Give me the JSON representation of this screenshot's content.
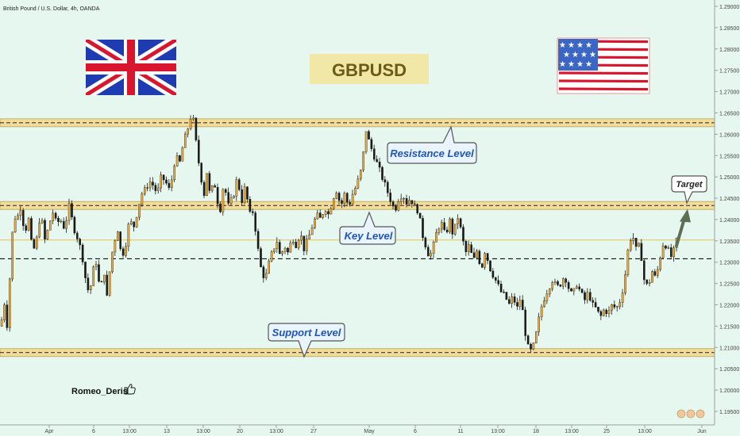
{
  "header": {
    "symbol_title": "British Pound / U.S. Dollar, 4h, OANDA"
  },
  "pair_label": "GBPUSD",
  "author": "Romeo_Deris",
  "author_icon": "thumbs-up-icon",
  "flags": {
    "left": "united-kingdom-flag-icon",
    "right": "united-states-flag-icon"
  },
  "colors": {
    "background": "#e5f7ee",
    "candle_up": "#f5ad35",
    "candle_down": "#1b1b1b",
    "zone_fill": "#f3dc9a",
    "label_bg": "#f1e7a6",
    "label_text": "#6b5a18",
    "callout_text": "#1e55b8",
    "arrow": "#5e6e55"
  },
  "chart_data": {
    "type": "candlestick",
    "title": "British Pound / U.S. Dollar, 4h, OANDA",
    "ylim": [
      1.195,
      1.29
    ],
    "y_ticks": [
      "1.29000",
      "1.28500",
      "1.28000",
      "1.27500",
      "1.27000",
      "1.26500",
      "1.26000",
      "1.25500",
      "1.25000",
      "1.24500",
      "1.24000",
      "1.23500",
      "1.23000",
      "1.22500",
      "1.22000",
      "1.21500",
      "1.21000",
      "1.20500",
      "1.20000",
      "1.19500"
    ],
    "x_ticks": [
      "Apr",
      "6",
      "13:00",
      "13",
      "13:00",
      "20",
      "13:00",
      "27",
      "May",
      "6",
      "11",
      "13:00",
      "18",
      "13:00",
      "25",
      "13:00",
      "Jun"
    ],
    "levels": [
      {
        "name": "resistance",
        "value": 1.2627
      },
      {
        "name": "key",
        "value": 1.2433
      },
      {
        "name": "support",
        "value": 1.2088
      }
    ],
    "reference_line": 1.2352,
    "dashed_line": 1.2308,
    "annotations": [
      "Resistance Level",
      "Key Level",
      "Support Level",
      "Target"
    ],
    "target_value": 1.2425,
    "path": [
      [
        0,
        1.215
      ],
      [
        4,
        1.221
      ],
      [
        8,
        1.215
      ],
      [
        12,
        1.229
      ],
      [
        16,
        1.241
      ],
      [
        20,
        1.24
      ],
      [
        25,
        1.243
      ],
      [
        30,
        1.237
      ],
      [
        35,
        1.24
      ],
      [
        40,
        1.232
      ],
      [
        46,
        1.236
      ],
      [
        50,
        1.242
      ],
      [
        55,
        1.235
      ],
      [
        60,
        1.238
      ],
      [
        65,
        1.242
      ],
      [
        70,
        1.239
      ],
      [
        75,
        1.24
      ],
      [
        80,
        1.238
      ],
      [
        86,
        1.243
      ],
      [
        92,
        1.238
      ],
      [
        98,
        1.235
      ],
      [
        104,
        1.23
      ],
      [
        108,
        1.224
      ],
      [
        112,
        1.223
      ],
      [
        116,
        1.228
      ],
      [
        120,
        1.23
      ],
      [
        125,
        1.223
      ],
      [
        130,
        1.228
      ],
      [
        134,
        1.221
      ],
      [
        138,
        1.23
      ],
      [
        142,
        1.234
      ],
      [
        147,
        1.238
      ],
      [
        152,
        1.231
      ],
      [
        157,
        1.234
      ],
      [
        162,
        1.24
      ],
      [
        167,
        1.238
      ],
      [
        172,
        1.242
      ],
      [
        177,
        1.246
      ],
      [
        182,
        1.247
      ],
      [
        187,
        1.249
      ],
      [
        192,
        1.248
      ],
      [
        197,
        1.246
      ],
      [
        202,
        1.25
      ],
      [
        207,
        1.249
      ],
      [
        212,
        1.247
      ],
      [
        216,
        1.25
      ],
      [
        220,
        1.255
      ],
      [
        225,
        1.253
      ],
      [
        230,
        1.258
      ],
      [
        235,
        1.261
      ],
      [
        239,
        1.264
      ],
      [
        243,
        1.263
      ],
      [
        247,
        1.256
      ],
      [
        252,
        1.25
      ],
      [
        256,
        1.246
      ],
      [
        260,
        1.252
      ],
      [
        264,
        1.244
      ],
      [
        268,
        1.25
      ],
      [
        272,
        1.245
      ],
      [
        276,
        1.242
      ],
      [
        281,
        1.249
      ],
      [
        286,
        1.243
      ],
      [
        292,
        1.245
      ],
      [
        298,
        1.25
      ],
      [
        303,
        1.244
      ],
      [
        308,
        1.248
      ],
      [
        313,
        1.241
      ],
      [
        318,
        1.242
      ],
      [
        323,
        1.234
      ],
      [
        328,
        1.228
      ],
      [
        333,
        1.226
      ],
      [
        338,
        1.23
      ],
      [
        343,
        1.233
      ],
      [
        348,
        1.235
      ],
      [
        352,
        1.231
      ],
      [
        357,
        1.234
      ],
      [
        362,
        1.232
      ],
      [
        367,
        1.236
      ],
      [
        372,
        1.234
      ],
      [
        377,
        1.237
      ],
      [
        382,
        1.233
      ],
      [
        388,
        1.236
      ],
      [
        393,
        1.239
      ],
      [
        398,
        1.241
      ],
      [
        403,
        1.24
      ],
      [
        408,
        1.243
      ],
      [
        413,
        1.241
      ],
      [
        418,
        1.245
      ],
      [
        423,
        1.247
      ],
      [
        428,
        1.243
      ],
      [
        433,
        1.246
      ],
      [
        438,
        1.243
      ],
      [
        443,
        1.246
      ],
      [
        448,
        1.248
      ],
      [
        453,
        1.251
      ],
      [
        457,
        1.256
      ],
      [
        460,
        1.261
      ],
      [
        464,
        1.258
      ],
      [
        468,
        1.256
      ],
      [
        472,
        1.254
      ],
      [
        476,
        1.252
      ],
      [
        480,
        1.25
      ],
      [
        484,
        1.248
      ],
      [
        488,
        1.246
      ],
      [
        492,
        1.244
      ],
      [
        496,
        1.242
      ],
      [
        501,
        1.245
      ],
      [
        506,
        1.246
      ],
      [
        511,
        1.244
      ],
      [
        516,
        1.245
      ],
      [
        521,
        1.243
      ],
      [
        526,
        1.242
      ],
      [
        530,
        1.237
      ],
      [
        535,
        1.234
      ],
      [
        540,
        1.231
      ],
      [
        545,
        1.234
      ],
      [
        550,
        1.238
      ],
      [
        555,
        1.239
      ],
      [
        560,
        1.236
      ],
      [
        565,
        1.24
      ],
      [
        570,
        1.236
      ],
      [
        575,
        1.241
      ],
      [
        580,
        1.237
      ],
      [
        585,
        1.232
      ],
      [
        590,
        1.234
      ],
      [
        595,
        1.23
      ],
      [
        600,
        1.233
      ],
      [
        605,
        1.228
      ],
      [
        610,
        1.233
      ],
      [
        615,
        1.229
      ],
      [
        620,
        1.227
      ],
      [
        625,
        1.225
      ],
      [
        630,
        1.223
      ],
      [
        635,
        1.222
      ],
      [
        640,
        1.22
      ],
      [
        645,
        1.222
      ],
      [
        650,
        1.219
      ],
      [
        655,
        1.222
      ],
      [
        660,
        1.214
      ],
      [
        664,
        1.21
      ],
      [
        668,
        1.209
      ],
      [
        672,
        1.211
      ],
      [
        676,
        1.215
      ],
      [
        680,
        1.219
      ],
      [
        685,
        1.222
      ],
      [
        690,
        1.224
      ],
      [
        695,
        1.226
      ],
      [
        700,
        1.224
      ],
      [
        705,
        1.225
      ],
      [
        710,
        1.227
      ],
      [
        715,
        1.224
      ],
      [
        720,
        1.222
      ],
      [
        725,
        1.225
      ],
      [
        730,
        1.223
      ],
      [
        735,
        1.221
      ],
      [
        740,
        1.223
      ],
      [
        745,
        1.22
      ],
      [
        750,
        1.219
      ],
      [
        755,
        1.217
      ],
      [
        760,
        1.219
      ],
      [
        765,
        1.218
      ],
      [
        770,
        1.22
      ],
      [
        775,
        1.219
      ],
      [
        780,
        1.221
      ],
      [
        785,
        1.225
      ],
      [
        790,
        1.233
      ],
      [
        795,
        1.237
      ],
      [
        800,
        1.233
      ],
      [
        805,
        1.234
      ],
      [
        810,
        1.226
      ],
      [
        815,
        1.224
      ],
      [
        820,
        1.228
      ],
      [
        825,
        1.226
      ],
      [
        830,
        1.231
      ],
      [
        835,
        1.235
      ],
      [
        840,
        1.233
      ],
      [
        845,
        1.231
      ],
      [
        850,
        1.234
      ],
      [
        853,
        1.237
      ]
    ]
  }
}
